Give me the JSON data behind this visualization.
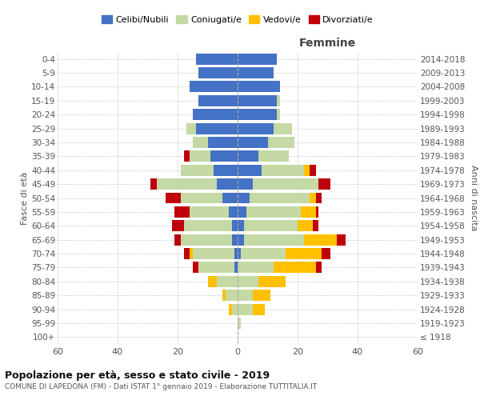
{
  "age_groups": [
    "100+",
    "95-99",
    "90-94",
    "85-89",
    "80-84",
    "75-79",
    "70-74",
    "65-69",
    "60-64",
    "55-59",
    "50-54",
    "45-49",
    "40-44",
    "35-39",
    "30-34",
    "25-29",
    "20-24",
    "15-19",
    "10-14",
    "5-9",
    "0-4"
  ],
  "birth_years": [
    "≤ 1918",
    "1919-1923",
    "1924-1928",
    "1929-1933",
    "1934-1938",
    "1939-1943",
    "1944-1948",
    "1949-1953",
    "1954-1958",
    "1959-1963",
    "1964-1968",
    "1969-1973",
    "1974-1978",
    "1979-1983",
    "1984-1988",
    "1989-1993",
    "1994-1998",
    "1999-2003",
    "2004-2008",
    "2009-2013",
    "2014-2018"
  ],
  "male": {
    "celibi": [
      0,
      0,
      0,
      0,
      0,
      1,
      1,
      2,
      2,
      3,
      5,
      7,
      8,
      9,
      10,
      14,
      15,
      13,
      16,
      13,
      14
    ],
    "coniugati": [
      0,
      0,
      2,
      4,
      7,
      12,
      14,
      17,
      16,
      13,
      14,
      20,
      11,
      7,
      5,
      3,
      0,
      0,
      0,
      0,
      0
    ],
    "vedovi": [
      0,
      0,
      1,
      1,
      3,
      0,
      1,
      0,
      0,
      0,
      0,
      0,
      0,
      0,
      0,
      0,
      0,
      0,
      0,
      0,
      0
    ],
    "divorziati": [
      0,
      0,
      0,
      0,
      0,
      2,
      2,
      2,
      4,
      5,
      5,
      2,
      0,
      2,
      0,
      0,
      0,
      0,
      0,
      0,
      0
    ]
  },
  "female": {
    "nubili": [
      0,
      0,
      0,
      0,
      0,
      0,
      1,
      2,
      2,
      3,
      4,
      5,
      8,
      7,
      10,
      12,
      13,
      13,
      14,
      12,
      13
    ],
    "coniugate": [
      0,
      1,
      5,
      5,
      7,
      12,
      15,
      20,
      18,
      18,
      20,
      22,
      14,
      10,
      9,
      6,
      1,
      1,
      0,
      0,
      0
    ],
    "vedove": [
      0,
      0,
      4,
      6,
      9,
      14,
      12,
      11,
      5,
      5,
      2,
      0,
      2,
      0,
      0,
      0,
      0,
      0,
      0,
      0,
      0
    ],
    "divorziate": [
      0,
      0,
      0,
      0,
      0,
      2,
      3,
      3,
      2,
      1,
      2,
      4,
      2,
      0,
      0,
      0,
      0,
      0,
      0,
      0,
      0
    ]
  },
  "colors": {
    "celibi": "#4472c4",
    "coniugati": "#c5d9a4",
    "vedovi": "#ffc000",
    "divorziati": "#c0000b"
  },
  "xlim": 60,
  "title": "Popolazione per età, sesso e stato civile - 2019",
  "subtitle": "COMUNE DI LAPEDONA (FM) - Dati ISTAT 1° gennaio 2019 - Elaborazione TUTTITALIA.IT",
  "ylabel_left": "Fasce di età",
  "ylabel_right": "Anni di nascita",
  "xlabel_right": "Femmine",
  "bg_color": "#ffffff",
  "grid_color": "#cccccc",
  "bar_height": 0.8
}
